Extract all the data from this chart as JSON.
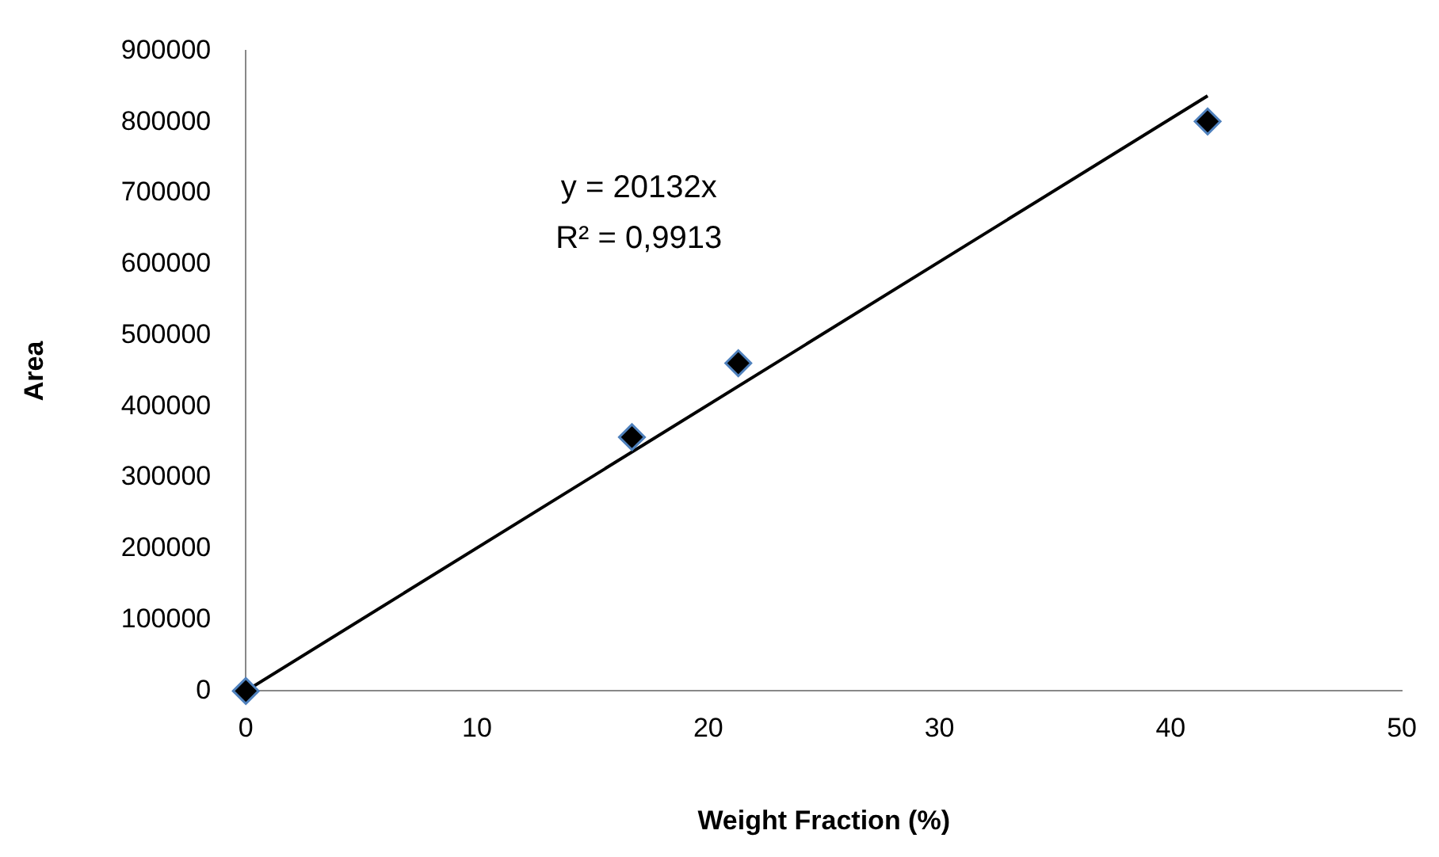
{
  "chart_data": {
    "type": "scatter",
    "xlabel": "Weight Fraction (%)",
    "ylabel": "Area",
    "xlim": [
      0,
      50
    ],
    "xticks": [
      0,
      10,
      20,
      30,
      40,
      50
    ],
    "ylim": [
      0,
      900000
    ],
    "yticks": [
      0,
      100000,
      200000,
      300000,
      400000,
      500000,
      600000,
      700000,
      800000,
      900000
    ],
    "grid": false,
    "legend": false,
    "marker": "diamond",
    "series": [
      {
        "color": "#000000",
        "x": [
          0,
          16.7,
          21.3,
          41.6
        ],
        "values": [
          0,
          357000,
          461000,
          801000
        ]
      },
      {
        "type": "line",
        "color": "#000000",
        "marker": "none",
        "line_style": "solid",
        "x": [
          0,
          41.6
        ],
        "values": [
          0,
          837000
        ]
      }
    ],
    "annotations": [
      "y = 20132x",
      "R² = 0,9913"
    ]
  }
}
